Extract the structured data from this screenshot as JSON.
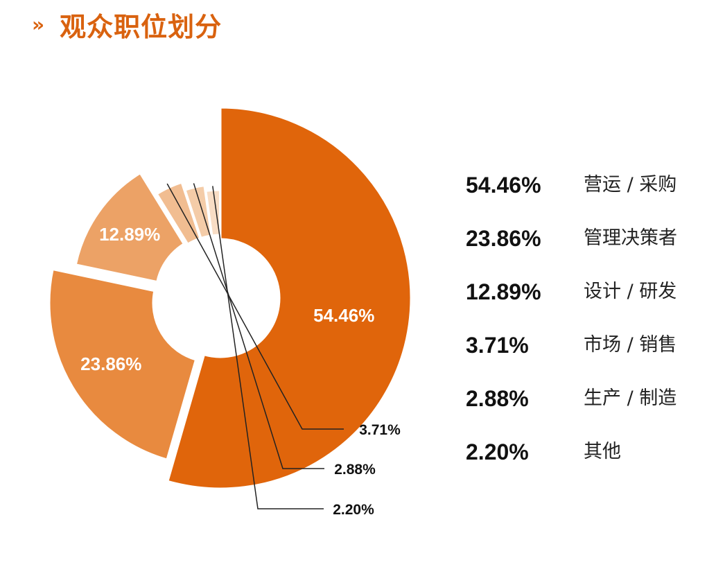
{
  "title": "观众职位划分",
  "title_marker": "»",
  "colors": {
    "accent": "#d9620f",
    "slices": [
      "#e0650b",
      "#e88a3f",
      "#eca266",
      "#f1bd91",
      "#f4cca8",
      "#f8ddc5"
    ]
  },
  "chart_data": {
    "type": "pie",
    "variant": "donut",
    "title": "观众职位划分",
    "categories": [
      "营运 / 采购",
      "管理决策者",
      "设计 / 研发",
      "市场 / 销售",
      "生产 / 制造",
      "其他"
    ],
    "values": [
      54.46,
      23.86,
      12.89,
      3.71,
      2.88,
      2.2
    ],
    "value_labels": [
      "54.46%",
      "23.86%",
      "12.89%",
      "3.71%",
      "2.88%",
      "2.20%"
    ],
    "legend_position": "right"
  },
  "legend": [
    {
      "value": "54.46%",
      "label": "营运 / 采购"
    },
    {
      "value": "23.86%",
      "label": "管理决策者"
    },
    {
      "value": "12.89%",
      "label": "设计 / 研发"
    },
    {
      "value": "3.71%",
      "label": "市场 / 销售"
    },
    {
      "value": "2.88%",
      "label": "生产 / 制造"
    },
    {
      "value": "2.20%",
      "label": "其他"
    }
  ]
}
